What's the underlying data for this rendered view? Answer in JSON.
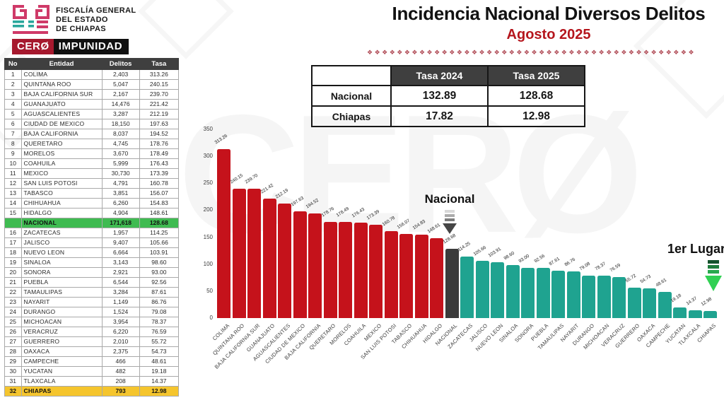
{
  "header": {
    "org_lines": [
      "FISCALÍA GENERAL",
      "DEL ESTADO",
      "DE CHIAPAS"
    ],
    "badge": {
      "left": "CERØ",
      "right": "IMPUNIDAD"
    },
    "title": "Incidencia Nacional Diversos Delitos",
    "subtitle": "Agosto 2025"
  },
  "watermark": "CERØ",
  "colors": {
    "above_national_bar": "#c5121b",
    "national_bar": "#3b3b3b",
    "below_national_bar": "#1fa390",
    "national_row_green": "#3fbb51",
    "chiapas_row_yellow": "#f5c52d",
    "badge_red": "#a6192e",
    "badge_black": "#101010",
    "subtitle_red": "#b5161d",
    "logo_pink": "#cf3a68",
    "logo_teal": "#2aa79c",
    "table_header_gray": "#3f3f3f"
  },
  "rank_table": {
    "headers": [
      "No",
      "Entidad",
      "Delitos",
      "Tasa"
    ],
    "rows": [
      {
        "no": "1",
        "entidad": "COLIMA",
        "delitos": "2,403",
        "tasa": "313.26",
        "type": ""
      },
      {
        "no": "2",
        "entidad": "QUINTANA ROO",
        "delitos": "5,047",
        "tasa": "240.15",
        "type": ""
      },
      {
        "no": "3",
        "entidad": "BAJA CALIFORNIA SUR",
        "delitos": "2,167",
        "tasa": "239.70",
        "type": ""
      },
      {
        "no": "4",
        "entidad": "GUANAJUATO",
        "delitos": "14,476",
        "tasa": "221.42",
        "type": ""
      },
      {
        "no": "5",
        "entidad": "AGUASCALIENTES",
        "delitos": "3,287",
        "tasa": "212.19",
        "type": ""
      },
      {
        "no": "6",
        "entidad": "CIUDAD DE MEXICO",
        "delitos": "18,150",
        "tasa": "197.63",
        "type": ""
      },
      {
        "no": "7",
        "entidad": "BAJA CALIFORNIA",
        "delitos": "8,037",
        "tasa": "194.52",
        "type": ""
      },
      {
        "no": "8",
        "entidad": "QUERETARO",
        "delitos": "4,745",
        "tasa": "178.76",
        "type": ""
      },
      {
        "no": "9",
        "entidad": "MORELOS",
        "delitos": "3,670",
        "tasa": "178.49",
        "type": ""
      },
      {
        "no": "10",
        "entidad": "COAHUILA",
        "delitos": "5,999",
        "tasa": "176.43",
        "type": ""
      },
      {
        "no": "11",
        "entidad": "MEXICO",
        "delitos": "30,730",
        "tasa": "173.39",
        "type": ""
      },
      {
        "no": "12",
        "entidad": "SAN LUIS POTOSI",
        "delitos": "4,791",
        "tasa": "160.78",
        "type": ""
      },
      {
        "no": "13",
        "entidad": "TABASCO",
        "delitos": "3,851",
        "tasa": "156.07",
        "type": ""
      },
      {
        "no": "14",
        "entidad": "CHIHUAHUA",
        "delitos": "6,260",
        "tasa": "154.83",
        "type": ""
      },
      {
        "no": "15",
        "entidad": "HIDALGO",
        "delitos": "4,904",
        "tasa": "148.61",
        "type": ""
      },
      {
        "no": "",
        "entidad": "NACIONAL",
        "delitos": "171,618",
        "tasa": "128.68",
        "type": "nacional"
      },
      {
        "no": "16",
        "entidad": "ZACATECAS",
        "delitos": "1,957",
        "tasa": "114.25",
        "type": ""
      },
      {
        "no": "17",
        "entidad": "JALISCO",
        "delitos": "9,407",
        "tasa": "105.66",
        "type": ""
      },
      {
        "no": "18",
        "entidad": "NUEVO LEON",
        "delitos": "6,664",
        "tasa": "103.91",
        "type": ""
      },
      {
        "no": "19",
        "entidad": "SINALOA",
        "delitos": "3,143",
        "tasa": "98.60",
        "type": ""
      },
      {
        "no": "20",
        "entidad": "SONORA",
        "delitos": "2,921",
        "tasa": "93.00",
        "type": ""
      },
      {
        "no": "21",
        "entidad": "PUEBLA",
        "delitos": "6,544",
        "tasa": "92.56",
        "type": ""
      },
      {
        "no": "22",
        "entidad": "TAMAULIPAS",
        "delitos": "3,284",
        "tasa": "87.61",
        "type": ""
      },
      {
        "no": "23",
        "entidad": "NAYARIT",
        "delitos": "1,149",
        "tasa": "86.76",
        "type": ""
      },
      {
        "no": "24",
        "entidad": "DURANGO",
        "delitos": "1,524",
        "tasa": "79.08",
        "type": ""
      },
      {
        "no": "25",
        "entidad": "MICHOACAN",
        "delitos": "3,954",
        "tasa": "78.37",
        "type": ""
      },
      {
        "no": "26",
        "entidad": "VERACRUZ",
        "delitos": "6,220",
        "tasa": "76.59",
        "type": ""
      },
      {
        "no": "27",
        "entidad": "GUERRERO",
        "delitos": "2,010",
        "tasa": "55.72",
        "type": ""
      },
      {
        "no": "28",
        "entidad": "OAXACA",
        "delitos": "2,375",
        "tasa": "54.73",
        "type": ""
      },
      {
        "no": "29",
        "entidad": "CAMPECHE",
        "delitos": "466",
        "tasa": "48.61",
        "type": ""
      },
      {
        "no": "30",
        "entidad": "YUCATAN",
        "delitos": "482",
        "tasa": "19.18",
        "type": ""
      },
      {
        "no": "31",
        "entidad": "TLAXCALA",
        "delitos": "208",
        "tasa": "14.37",
        "type": ""
      },
      {
        "no": "32",
        "entidad": "CHIAPAS",
        "delitos": "793",
        "tasa": "12.98",
        "type": "chiapas"
      }
    ]
  },
  "comparison_table": {
    "headers": [
      "",
      "Tasa 2024",
      "Tasa 2025"
    ],
    "rows": [
      {
        "label": "Nacional",
        "values": [
          "132.89",
          "128.68"
        ]
      },
      {
        "label": "Chiapas",
        "values": [
          "17.82",
          "12.98"
        ]
      }
    ]
  },
  "annotations": {
    "national_label": "Nacional",
    "first_place_label": "1er Lugar"
  },
  "chart_data": {
    "type": "bar",
    "title": "Incidencia Nacional Diversos Delitos — Agosto 2025",
    "xlabel": "",
    "ylabel": "",
    "ylim": [
      0,
      350
    ],
    "yticks": [
      0,
      50,
      100,
      150,
      200,
      250,
      300,
      350
    ],
    "grid": false,
    "legend": "none",
    "national_index": 15,
    "categories": [
      "COLIMA",
      "QUINTANA ROO",
      "BAJA CALIFORNIA SUR",
      "GUANAJUATO",
      "AGUASCALIENTES",
      "CIUDAD DE MEXICO",
      "BAJA CALIFORNIA",
      "QUERETARO",
      "MORELOS",
      "COAHUILA",
      "MEXICO",
      "SAN LUIS POTOSI",
      "TABASCO",
      "CHIHUAHUA",
      "HIDALGO",
      "NACIONAL",
      "ZACATECAS",
      "JALISCO",
      "NUEVO LEON",
      "SINALOA",
      "SONORA",
      "PUEBLA",
      "TAMAULIPAS",
      "NAYARIT",
      "DURANGO",
      "MICHOACAN",
      "VERACRUZ",
      "GUERRERO",
      "OAXACA",
      "CAMPECHE",
      "YUCATAN",
      "TLAXCALA",
      "CHIAPAS"
    ],
    "values": [
      313.26,
      240.15,
      239.7,
      221.42,
      212.19,
      197.63,
      194.52,
      178.76,
      178.49,
      176.43,
      173.39,
      160.78,
      156.07,
      154.83,
      148.61,
      128.68,
      114.25,
      105.66,
      103.91,
      98.6,
      93.0,
      92.56,
      87.61,
      86.76,
      79.08,
      78.37,
      76.59,
      55.72,
      54.73,
      48.61,
      19.18,
      14.37,
      12.98
    ]
  }
}
